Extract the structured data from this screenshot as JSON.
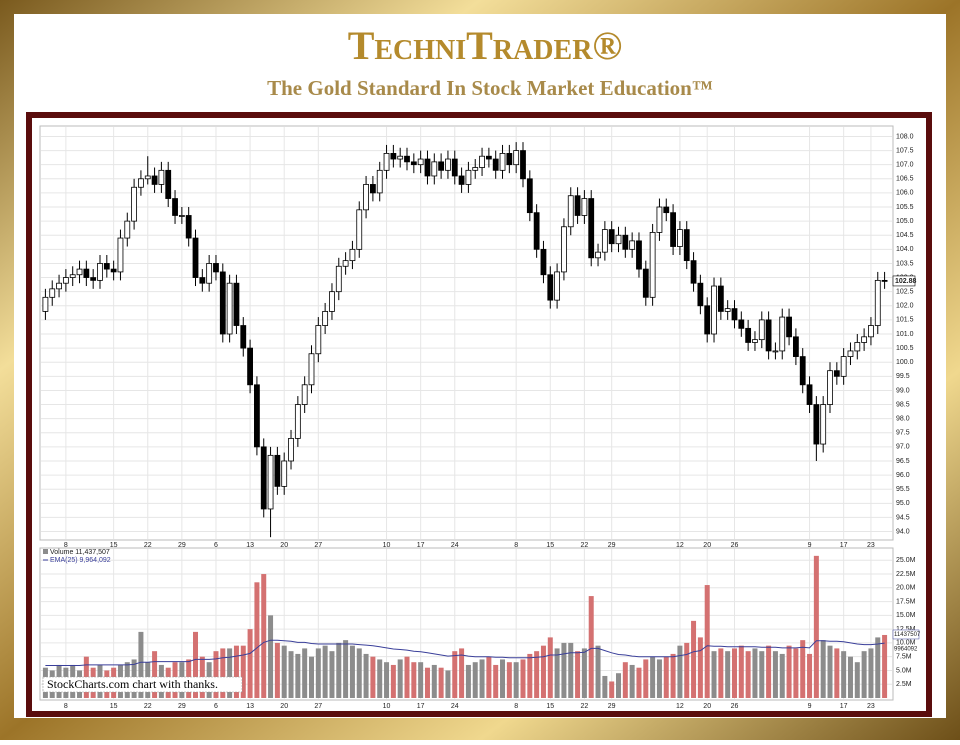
{
  "header": {
    "title": "TechniTrader®",
    "subtitle": "The Gold Standard In Stock Market Education™"
  },
  "chart_data": {
    "type": "candlestick",
    "open": [
      101.8,
      102.3,
      102.6,
      102.8,
      103.0,
      103.1,
      103.3,
      103.0,
      102.9,
      103.5,
      103.3,
      103.2,
      104.4,
      105.0,
      106.2,
      106.5,
      106.6,
      106.3,
      106.8,
      105.8,
      105.2,
      105.2,
      104.4,
      103.0,
      102.8,
      103.5,
      103.2,
      101.0,
      102.8,
      101.3,
      100.5,
      99.2,
      97.0,
      94.8,
      96.7,
      95.6,
      96.5,
      97.3,
      98.5,
      99.2,
      100.3,
      101.3,
      101.8,
      102.5,
      103.4,
      103.6,
      104.0,
      105.4,
      106.3,
      106.0,
      106.8,
      107.4,
      107.2,
      107.3,
      107.1,
      107.0,
      107.2,
      106.6,
      107.1,
      106.8,
      107.2,
      106.6,
      106.3,
      106.8,
      106.9,
      107.3,
      107.2,
      106.8,
      107.4,
      107.0,
      107.5,
      106.5,
      105.3,
      104.0,
      103.1,
      102.2,
      103.2,
      104.8,
      105.9,
      105.2,
      105.8,
      103.7,
      103.9,
      104.7,
      104.2,
      104.5,
      104.0,
      104.3,
      103.3,
      102.3,
      104.6,
      105.5,
      105.3,
      104.1,
      104.7,
      103.6,
      102.8,
      102.0,
      101.0,
      102.7,
      101.8,
      101.9,
      101.5,
      101.2,
      100.7,
      100.8,
      101.5,
      100.4,
      100.4,
      101.6,
      100.9,
      100.2,
      99.2,
      98.5,
      97.1,
      98.5,
      99.7,
      99.5,
      100.2,
      100.4,
      100.7,
      100.9,
      101.3,
      102.9
    ],
    "high": [
      102.6,
      102.9,
      103.1,
      103.3,
      103.4,
      103.6,
      103.6,
      103.3,
      103.8,
      103.8,
      103.6,
      104.7,
      105.3,
      106.5,
      106.8,
      107.3,
      106.9,
      107.1,
      107.1,
      106.1,
      105.5,
      105.5,
      104.7,
      103.3,
      103.8,
      103.8,
      103.5,
      103.1,
      103.1,
      101.6,
      100.8,
      99.5,
      97.3,
      97.0,
      97.0,
      96.8,
      97.6,
      98.8,
      99.5,
      100.6,
      101.6,
      102.1,
      102.8,
      103.7,
      103.9,
      104.3,
      105.7,
      106.6,
      106.6,
      107.1,
      107.7,
      107.7,
      107.6,
      107.6,
      107.4,
      107.5,
      107.5,
      107.4,
      107.4,
      107.5,
      107.5,
      106.9,
      107.1,
      107.2,
      107.6,
      107.6,
      107.5,
      107.7,
      107.7,
      107.8,
      107.8,
      106.8,
      105.6,
      104.3,
      103.4,
      103.5,
      105.1,
      106.2,
      106.2,
      106.1,
      106.1,
      104.2,
      105.0,
      105.0,
      104.8,
      104.8,
      104.6,
      104.6,
      103.6,
      104.9,
      105.8,
      105.8,
      105.6,
      105.0,
      105.0,
      103.9,
      103.1,
      102.3,
      103.0,
      103.0,
      102.2,
      102.2,
      101.8,
      101.5,
      101.1,
      101.8,
      101.8,
      100.7,
      101.9,
      101.9,
      101.2,
      100.5,
      99.5,
      98.8,
      98.8,
      100.0,
      100.0,
      100.5,
      100.7,
      101.0,
      101.2,
      101.6,
      103.2,
      103.2
    ],
    "low": [
      101.5,
      102.0,
      102.3,
      102.5,
      102.7,
      102.8,
      102.7,
      102.6,
      102.6,
      103.0,
      102.9,
      102.9,
      104.1,
      104.7,
      105.9,
      106.3,
      106.0,
      106.0,
      105.5,
      104.9,
      104.9,
      104.1,
      102.7,
      102.5,
      102.5,
      102.9,
      100.7,
      100.7,
      101.0,
      100.2,
      98.9,
      96.7,
      94.5,
      93.8,
      95.3,
      95.3,
      96.2,
      97.0,
      98.2,
      98.9,
      100.0,
      101.0,
      101.5,
      102.2,
      103.1,
      103.3,
      103.7,
      105.1,
      105.7,
      105.7,
      106.5,
      106.9,
      106.9,
      106.8,
      106.7,
      106.7,
      106.3,
      106.3,
      106.5,
      106.5,
      106.3,
      106.0,
      106.0,
      106.5,
      106.6,
      106.9,
      106.5,
      106.5,
      106.7,
      106.7,
      106.2,
      105.0,
      103.7,
      102.8,
      101.9,
      101.9,
      102.9,
      104.5,
      104.9,
      104.9,
      103.4,
      103.4,
      103.6,
      103.9,
      103.9,
      103.7,
      103.7,
      103.0,
      102.0,
      102.0,
      104.3,
      105.0,
      103.8,
      103.8,
      103.3,
      102.5,
      101.7,
      100.7,
      100.7,
      101.5,
      101.5,
      101.2,
      100.9,
      100.4,
      100.4,
      100.5,
      100.1,
      100.1,
      100.1,
      100.6,
      99.9,
      98.9,
      98.2,
      96.5,
      96.8,
      98.2,
      99.2,
      99.2,
      99.9,
      100.1,
      100.4,
      100.6,
      101.0,
      102.6
    ],
    "close": [
      102.3,
      102.6,
      102.8,
      103.0,
      103.1,
      103.3,
      103.0,
      102.9,
      103.5,
      103.3,
      103.2,
      104.4,
      105.0,
      106.2,
      106.5,
      106.6,
      106.3,
      106.8,
      105.8,
      105.2,
      105.2,
      104.4,
      103.0,
      102.8,
      103.5,
      103.2,
      101.0,
      102.8,
      101.3,
      100.5,
      99.2,
      97.0,
      94.8,
      96.7,
      95.6,
      96.5,
      97.3,
      98.5,
      99.2,
      100.3,
      101.3,
      101.8,
      102.5,
      103.4,
      103.6,
      104.0,
      105.4,
      106.3,
      106.0,
      106.8,
      107.4,
      107.2,
      107.3,
      107.1,
      107.0,
      107.2,
      106.6,
      107.1,
      106.8,
      107.2,
      106.6,
      106.3,
      106.8,
      106.9,
      107.3,
      107.2,
      106.8,
      107.4,
      107.0,
      107.5,
      106.5,
      105.3,
      104.0,
      103.1,
      102.2,
      103.2,
      104.8,
      105.9,
      105.2,
      105.8,
      103.7,
      103.9,
      104.7,
      104.2,
      104.5,
      104.0,
      104.3,
      103.3,
      102.3,
      104.6,
      105.5,
      105.3,
      104.1,
      104.7,
      103.6,
      102.8,
      102.0,
      101.0,
      102.7,
      101.8,
      101.9,
      101.5,
      101.2,
      100.7,
      100.8,
      101.5,
      100.4,
      100.4,
      101.6,
      100.9,
      100.2,
      99.2,
      98.5,
      97.1,
      98.5,
      99.7,
      99.5,
      100.2,
      100.4,
      100.7,
      100.9,
      101.3,
      102.9,
      102.88
    ],
    "volume": [
      5.5,
      5.0,
      6.0,
      5.5,
      6.0,
      5.0,
      7.5,
      5.5,
      6.0,
      5.0,
      5.5,
      6.0,
      6.5,
      7.0,
      12.0,
      6.5,
      8.5,
      6.0,
      5.5,
      6.5,
      6.5,
      7.0,
      12.0,
      7.5,
      6.5,
      8.5,
      9.0,
      9.0,
      9.5,
      9.5,
      12.5,
      21.0,
      22.5,
      15.0,
      10.0,
      9.5,
      8.5,
      8.0,
      9.0,
      7.5,
      9.0,
      9.5,
      8.5,
      10.0,
      10.5,
      9.5,
      9.0,
      8.0,
      7.5,
      7.0,
      6.5,
      6.0,
      7.0,
      7.5,
      6.5,
      6.5,
      5.5,
      6.0,
      5.5,
      5.0,
      8.5,
      9.0,
      6.0,
      6.5,
      7.0,
      7.5,
      6.0,
      7.0,
      6.5,
      6.5,
      7.0,
      8.0,
      8.5,
      9.5,
      11.0,
      9.0,
      10.0,
      10.0,
      8.5,
      9.0,
      18.5,
      9.5,
      4.0,
      3.0,
      4.5,
      6.5,
      6.0,
      5.5,
      7.0,
      7.5,
      7.0,
      7.5,
      8.0,
      9.5,
      10.0,
      14.0,
      11.0,
      20.5,
      8.5,
      9.0,
      8.5,
      9.0,
      9.5,
      8.5,
      9.0,
      8.5,
      9.5,
      8.5,
      8.0,
      9.5,
      9.0,
      10.5,
      8.0,
      25.8,
      10.5,
      9.5,
      9.0,
      8.5,
      7.5,
      6.5,
      8.5,
      9.0,
      11.0,
      11.44
    ],
    "ema": [
      5.9,
      5.9,
      5.9,
      5.9,
      5.9,
      5.9,
      6.0,
      6.0,
      6.0,
      6.0,
      6.0,
      6.0,
      6.0,
      6.1,
      6.5,
      6.5,
      6.6,
      6.6,
      6.6,
      6.6,
      6.6,
      6.6,
      7.0,
      7.0,
      7.0,
      7.1,
      7.3,
      7.4,
      7.6,
      7.8,
      8.1,
      9.1,
      10.1,
      10.5,
      10.5,
      10.4,
      10.3,
      10.1,
      10.1,
      9.9,
      9.8,
      9.8,
      9.8,
      9.8,
      9.8,
      9.8,
      9.7,
      9.6,
      9.5,
      9.3,
      9.1,
      8.9,
      8.8,
      8.7,
      8.5,
      8.4,
      8.2,
      8.0,
      7.8,
      7.6,
      7.7,
      7.8,
      7.6,
      7.5,
      7.5,
      7.5,
      7.4,
      7.4,
      7.3,
      7.3,
      7.3,
      7.3,
      7.4,
      7.5,
      7.8,
      7.8,
      8.0,
      8.2,
      8.2,
      8.3,
      9.0,
      9.0,
      8.6,
      8.2,
      7.9,
      7.8,
      7.6,
      7.5,
      7.5,
      7.5,
      7.5,
      7.5,
      7.5,
      7.7,
      7.9,
      8.4,
      8.6,
      9.5,
      9.4,
      9.4,
      9.3,
      9.3,
      9.3,
      9.3,
      9.3,
      9.2,
      9.2,
      9.2,
      9.1,
      9.1,
      9.1,
      9.2,
      9.1,
      10.4,
      10.4,
      10.3,
      10.3,
      10.2,
      10.0,
      9.8,
      9.7,
      9.7,
      9.8,
      9.96
    ],
    "up_color": "#ffffff",
    "down_color": "#000000",
    "volume_up_color": "#8c8c8c",
    "volume_down_color": "#d47171",
    "ema_color": "#3a3f9a",
    "ylim": [
      93.7,
      108.3
    ],
    "yticks": [
      {
        "value": 94,
        "label": "94.0"
      },
      94.5,
      {
        "value": 95,
        "label": "95.0"
      },
      95.5,
      {
        "value": 96,
        "label": "96.0"
      },
      96.5,
      {
        "value": 97,
        "label": "97.0"
      },
      97.5,
      {
        "value": 98,
        "label": "98.0"
      },
      98.5,
      {
        "value": 99,
        "label": "99.0"
      },
      99.5,
      {
        "value": 100,
        "label": "100.0"
      },
      100.5,
      {
        "value": 101,
        "label": "101.0"
      },
      101.5,
      {
        "value": 102,
        "label": "102.0"
      },
      102.5,
      {
        "value": 103,
        "label": "103.0"
      },
      103.5,
      {
        "value": 104,
        "label": "104.0"
      },
      104.5,
      {
        "value": 105,
        "label": "105.0"
      },
      105.5,
      {
        "value": 106,
        "label": "106.0"
      },
      106.5,
      {
        "value": 107,
        "label": "107.0"
      },
      107.5,
      {
        "value": 108,
        "label": "108.0"
      }
    ],
    "y2lim": [
      0,
      26.5
    ],
    "y2ticks": [
      {
        "value": 2.5,
        "label": "2.5M"
      },
      {
        "value": 5,
        "label": "5.0M"
      },
      {
        "value": 7.5,
        "label": "7.5M"
      },
      {
        "value": 10,
        "label": "10.0M"
      },
      {
        "value": 12.5,
        "label": "12.5M"
      },
      {
        "value": 15,
        "label": "15.0M"
      },
      {
        "value": 17.5,
        "label": "17.5M"
      },
      {
        "value": 20,
        "label": "20.0M"
      },
      {
        "value": 22.5,
        "label": "22.5M"
      },
      {
        "value": 25,
        "label": "25.0M"
      }
    ],
    "xlim": [
      0,
      124
    ],
    "xticks": [
      {
        "value": 3,
        "label": "8"
      },
      {
        "value": 10,
        "label": "15"
      },
      {
        "value": 15,
        "label": "22"
      },
      {
        "value": 20,
        "label": "29"
      },
      {
        "value": 25,
        "label": "6"
      },
      {
        "value": 30,
        "label": "13"
      },
      {
        "value": 35,
        "label": "20"
      },
      {
        "value": 40,
        "label": "27"
      },
      {
        "value": 50,
        "label": "10"
      },
      {
        "value": 55,
        "label": "17"
      },
      {
        "value": 60,
        "label": "24"
      },
      {
        "value": 69,
        "label": "8"
      },
      {
        "value": 74,
        "label": "15"
      },
      {
        "value": 79,
        "label": "22"
      },
      {
        "value": 83,
        "label": "29"
      },
      {
        "value": 93,
        "label": "12"
      },
      {
        "value": 97,
        "label": "20"
      },
      {
        "value": 101,
        "label": "26"
      },
      {
        "value": 112,
        "label": "9"
      },
      {
        "value": 117,
        "label": "17"
      },
      {
        "value": 121,
        "label": "23"
      }
    ],
    "grid": true,
    "volume_legend": "Volume 11,437,507",
    "ema_legend": "EMA(25) 9,964,092",
    "last_volume_label": "11437507",
    "last_ema_label": "9964092",
    "watermark": "StockCharts.com  chart with thanks."
  }
}
